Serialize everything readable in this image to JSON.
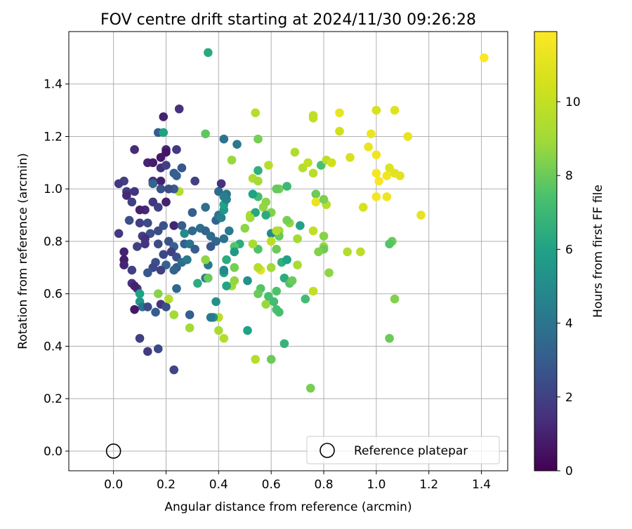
{
  "chart_data": {
    "type": "scatter",
    "title": "FOV centre drift starting at 2024/11/30 09:26:28",
    "xlabel": "Angular distance from reference (arcmin)",
    "ylabel": "Rotation from reference (arcmin)",
    "xlim": [
      -0.17,
      1.5
    ],
    "ylim": [
      -0.075,
      1.6
    ],
    "xticks": [
      0.0,
      0.2,
      0.4,
      0.6,
      0.8,
      1.0,
      1.2,
      1.4
    ],
    "xtick_labels": [
      "0.0",
      "0.2",
      "0.4",
      "0.6",
      "0.8",
      "1.0",
      "1.2",
      "1.4"
    ],
    "yticks": [
      0.0,
      0.2,
      0.4,
      0.6,
      0.8,
      1.0,
      1.2,
      1.4
    ],
    "ytick_labels": [
      "0.0",
      "0.2",
      "0.4",
      "0.6",
      "0.8",
      "1.0",
      "1.2",
      "1.4"
    ],
    "grid": true,
    "legend": {
      "placement": "lower-right",
      "entries": [
        "Reference platepar"
      ]
    },
    "colorbar": {
      "label": "Hours from first FF file",
      "colormap": "viridis",
      "range": [
        0,
        11.9
      ],
      "ticks": [
        0,
        2,
        4,
        6,
        8,
        10
      ],
      "tick_labels": [
        "0",
        "2",
        "4",
        "6",
        "8",
        "10"
      ]
    },
    "reference_point": {
      "x": 0.0,
      "y": 0.0,
      "name": "Reference platepar"
    },
    "points": [
      [
        0.25,
        1.305,
        1.5
      ],
      [
        0.19,
        1.275,
        1.0
      ],
      [
        0.17,
        1.215,
        3.0
      ],
      [
        0.19,
        1.215,
        6.0
      ],
      [
        0.2,
        1.15,
        1.2
      ],
      [
        0.2,
        1.14,
        0.6
      ],
      [
        0.24,
        1.15,
        1.8
      ],
      [
        0.08,
        1.15,
        1.3
      ],
      [
        0.13,
        1.1,
        1.1
      ],
      [
        0.15,
        1.1,
        0.8
      ],
      [
        0.18,
        1.12,
        0.7
      ],
      [
        0.18,
        1.08,
        1.4
      ],
      [
        0.2,
        1.09,
        2.0
      ],
      [
        0.26,
        1.08,
        2.8
      ],
      [
        0.23,
        1.06,
        3.0
      ],
      [
        0.24,
        1.05,
        3.2
      ],
      [
        0.04,
        1.03,
        2.0
      ],
      [
        0.15,
        1.03,
        1.5
      ],
      [
        0.18,
        1.03,
        1.0
      ],
      [
        0.02,
        1.02,
        1.7
      ],
      [
        0.05,
        0.99,
        1.8
      ],
      [
        0.05,
        0.975,
        1.2
      ],
      [
        0.08,
        0.99,
        1.6
      ],
      [
        0.15,
        1.02,
        3.4
      ],
      [
        0.18,
        1.0,
        2.6
      ],
      [
        0.2,
        0.95,
        3.0
      ],
      [
        0.2,
        0.95,
        1.0
      ],
      [
        0.15,
        0.95,
        1.6
      ],
      [
        0.17,
        0.93,
        2.0
      ],
      [
        0.12,
        0.92,
        1.2
      ],
      [
        0.1,
        0.92,
        1.0
      ],
      [
        0.07,
        0.95,
        2.0
      ],
      [
        0.06,
        0.88,
        2.5
      ],
      [
        0.02,
        0.83,
        1.7
      ],
      [
        0.1,
        0.87,
        2.0
      ],
      [
        0.13,
        0.87,
        2.4
      ],
      [
        0.19,
        0.86,
        2.6
      ],
      [
        0.23,
        0.86,
        1.1
      ],
      [
        0.26,
        0.86,
        3.0
      ],
      [
        0.17,
        0.84,
        2.4
      ],
      [
        0.14,
        0.83,
        2.5
      ],
      [
        0.11,
        0.82,
        1.9
      ],
      [
        0.12,
        0.81,
        1.4
      ],
      [
        0.12,
        0.79,
        1.6
      ],
      [
        0.09,
        0.78,
        2.0
      ],
      [
        0.04,
        0.76,
        1.0
      ],
      [
        0.17,
        0.79,
        2.4
      ],
      [
        0.19,
        0.75,
        2.3
      ],
      [
        0.21,
        0.8,
        2.6
      ],
      [
        0.23,
        0.78,
        3.2
      ],
      [
        0.22,
        0.76,
        2.0
      ],
      [
        0.24,
        0.74,
        2.6
      ],
      [
        0.2,
        0.71,
        3.3
      ],
      [
        0.16,
        0.72,
        2.5
      ],
      [
        0.15,
        0.7,
        2.3
      ],
      [
        0.13,
        0.68,
        2.8
      ],
      [
        0.18,
        0.69,
        2.0
      ],
      [
        0.04,
        0.73,
        0.8
      ],
      [
        0.04,
        0.71,
        1.1
      ],
      [
        0.07,
        0.69,
        2.0
      ],
      [
        0.07,
        0.64,
        1.5
      ],
      [
        0.09,
        0.62,
        1.6
      ],
      [
        0.08,
        0.63,
        1.0
      ],
      [
        0.1,
        0.57,
        5.5
      ],
      [
        0.1,
        0.6,
        6.0
      ],
      [
        0.11,
        0.55,
        4.0
      ],
      [
        0.13,
        0.55,
        2.4
      ],
      [
        0.16,
        0.53,
        3.0
      ],
      [
        0.18,
        0.56,
        1.5
      ],
      [
        0.2,
        0.55,
        2.5
      ],
      [
        0.21,
        0.58,
        9.5
      ],
      [
        0.23,
        0.52,
        9.0
      ],
      [
        0.17,
        0.6,
        8.5
      ],
      [
        0.1,
        0.43,
        2.0
      ],
      [
        0.13,
        0.38,
        1.8
      ],
      [
        0.17,
        0.39,
        2.3
      ],
      [
        0.23,
        0.31,
        2.2
      ],
      [
        0.08,
        0.54,
        0.7
      ],
      [
        0.24,
        0.62,
        3.4
      ],
      [
        0.24,
        0.7,
        3.0
      ],
      [
        0.23,
        0.69,
        3.3
      ],
      [
        0.26,
        0.72,
        3.8
      ],
      [
        0.28,
        0.73,
        4.2
      ],
      [
        0.27,
        0.79,
        3.2
      ],
      [
        0.29,
        0.79,
        4.0
      ],
      [
        0.31,
        0.77,
        3.0
      ],
      [
        0.27,
        0.83,
        5.0
      ],
      [
        0.3,
        0.84,
        3.5
      ],
      [
        0.33,
        0.85,
        3.8
      ],
      [
        0.35,
        0.84,
        3.4
      ],
      [
        0.37,
        0.82,
        3.6
      ],
      [
        0.3,
        0.91,
        3.0
      ],
      [
        0.35,
        0.93,
        3.8
      ],
      [
        0.39,
        0.88,
        3.3
      ],
      [
        0.4,
        0.9,
        4.0
      ],
      [
        0.41,
        0.89,
        4.6
      ],
      [
        0.42,
        0.92,
        5.5
      ],
      [
        0.42,
        0.94,
        6.0
      ],
      [
        0.43,
        0.96,
        4.6
      ],
      [
        0.4,
        0.99,
        3.6
      ],
      [
        0.41,
        1.02,
        1.5
      ],
      [
        0.43,
        0.98,
        3.9
      ],
      [
        0.42,
        0.97,
        4.5
      ],
      [
        0.31,
        1.03,
        2.0
      ],
      [
        0.42,
        1.19,
        4.0
      ],
      [
        0.47,
        1.17,
        4.2
      ],
      [
        0.36,
        1.52,
        6.3
      ],
      [
        0.35,
        1.21,
        7.8
      ],
      [
        0.45,
        1.11,
        8.8
      ],
      [
        0.53,
        1.04,
        9.4
      ],
      [
        0.55,
        1.07,
        6.6
      ],
      [
        0.55,
        1.03,
        9.1
      ],
      [
        0.59,
        1.09,
        9.6
      ],
      [
        0.63,
        1.0,
        8.2
      ],
      [
        0.62,
        1.0,
        7.9
      ],
      [
        0.66,
        1.01,
        7.0
      ],
      [
        0.55,
        1.19,
        8.2
      ],
      [
        0.54,
        1.29,
        9.6
      ],
      [
        0.69,
        1.14,
        9.4
      ],
      [
        0.72,
        1.08,
        9.6
      ],
      [
        0.74,
        1.1,
        9.9
      ],
      [
        0.76,
        1.06,
        9.7
      ],
      [
        0.76,
        1.28,
        10.0
      ],
      [
        0.76,
        1.27,
        9.9
      ],
      [
        0.77,
        0.98,
        8.0
      ],
      [
        0.79,
        1.09,
        7.4
      ],
      [
        0.81,
        1.11,
        9.8
      ],
      [
        0.83,
        1.1,
        10.4
      ],
      [
        0.86,
        1.22,
        10.4
      ],
      [
        0.86,
        1.29,
        11.2
      ],
      [
        0.9,
        1.12,
        10.6
      ],
      [
        0.97,
        1.16,
        11.3
      ],
      [
        0.98,
        1.21,
        11.3
      ],
      [
        1.0,
        1.3,
        10.6
      ],
      [
        1.0,
        1.13,
        11.5
      ],
      [
        1.0,
        1.06,
        11.6
      ],
      [
        1.01,
        1.03,
        11.7
      ],
      [
        1.04,
        1.05,
        11.5
      ],
      [
        1.05,
        1.08,
        10.8
      ],
      [
        1.07,
        1.06,
        11.0
      ],
      [
        1.09,
        1.05,
        11.0
      ],
      [
        1.12,
        1.2,
        11.2
      ],
      [
        1.07,
        1.3,
        10.9
      ],
      [
        1.04,
        0.97,
        11.4
      ],
      [
        1.0,
        0.97,
        11.6
      ],
      [
        0.95,
        0.93,
        10.6
      ],
      [
        1.17,
        0.9,
        11.1
      ],
      [
        1.41,
        1.5,
        11.9
      ],
      [
        0.77,
        0.95,
        11.2
      ],
      [
        0.81,
        0.94,
        9.6
      ],
      [
        0.8,
        0.96,
        8.3
      ],
      [
        0.8,
        0.82,
        8.5
      ],
      [
        0.8,
        0.78,
        8.8
      ],
      [
        0.8,
        0.77,
        8.0
      ],
      [
        0.78,
        0.76,
        8.4
      ],
      [
        0.82,
        0.68,
        8.6
      ],
      [
        0.89,
        0.76,
        9.5
      ],
      [
        0.94,
        0.76,
        9.8
      ],
      [
        0.76,
        0.84,
        9.9
      ],
      [
        0.7,
        0.81,
        9.0
      ],
      [
        0.71,
        0.86,
        6.0
      ],
      [
        0.67,
        0.87,
        8.7
      ],
      [
        0.66,
        0.88,
        8.2
      ],
      [
        0.63,
        0.84,
        8.9
      ],
      [
        0.63,
        0.82,
        7.9
      ],
      [
        0.6,
        0.91,
        8.4
      ],
      [
        0.58,
        0.95,
        8.6
      ],
      [
        0.57,
        0.93,
        8.7
      ],
      [
        0.55,
        0.97,
        7.2
      ],
      [
        0.53,
        0.98,
        6.0
      ],
      [
        0.52,
        0.9,
        9.5
      ],
      [
        0.54,
        0.91,
        6.2
      ],
      [
        0.52,
        0.89,
        9.0
      ],
      [
        0.58,
        0.9,
        6.4
      ],
      [
        0.6,
        0.83,
        5.0
      ],
      [
        0.62,
        0.84,
        9.5
      ],
      [
        0.6,
        0.8,
        9.8
      ],
      [
        0.55,
        0.77,
        7.5
      ],
      [
        0.53,
        0.79,
        9.2
      ],
      [
        0.5,
        0.85,
        8.6
      ],
      [
        0.48,
        0.79,
        6.4
      ],
      [
        0.46,
        0.78,
        7.6
      ],
      [
        0.42,
        0.81,
        3.8
      ],
      [
        0.44,
        0.84,
        4.2
      ],
      [
        0.46,
        0.76,
        5.6
      ],
      [
        0.43,
        0.73,
        6.4
      ],
      [
        0.39,
        0.8,
        3.4
      ],
      [
        0.37,
        0.78,
        2.8
      ],
      [
        0.36,
        0.71,
        4.2
      ],
      [
        0.35,
        0.73,
        8.6
      ],
      [
        0.32,
        0.64,
        6.4
      ],
      [
        0.35,
        0.66,
        4.2
      ],
      [
        0.36,
        0.66,
        8.0
      ],
      [
        0.42,
        0.68,
        6.0
      ],
      [
        0.42,
        0.69,
        4.8
      ],
      [
        0.45,
        0.63,
        9.0
      ],
      [
        0.46,
        0.65,
        8.7
      ],
      [
        0.43,
        0.63,
        6.1
      ],
      [
        0.46,
        0.7,
        8.2
      ],
      [
        0.51,
        0.65,
        5.2
      ],
      [
        0.56,
        0.69,
        11.0
      ],
      [
        0.55,
        0.7,
        9.6
      ],
      [
        0.56,
        0.62,
        7.6
      ],
      [
        0.55,
        0.6,
        8.0
      ],
      [
        0.58,
        0.56,
        8.8
      ],
      [
        0.59,
        0.59,
        7.3
      ],
      [
        0.61,
        0.57,
        7.2
      ],
      [
        0.62,
        0.54,
        7.3
      ],
      [
        0.63,
        0.53,
        7.3
      ],
      [
        0.62,
        0.61,
        7.5
      ],
      [
        0.65,
        0.66,
        6.4
      ],
      [
        0.67,
        0.64,
        7.6
      ],
      [
        0.68,
        0.65,
        8.0
      ],
      [
        0.7,
        0.71,
        9.2
      ],
      [
        0.64,
        0.72,
        6.6
      ],
      [
        0.6,
        0.7,
        9.0
      ],
      [
        0.62,
        0.77,
        8.0
      ],
      [
        0.66,
        0.73,
        6.0
      ],
      [
        0.73,
        0.58,
        7.2
      ],
      [
        0.76,
        0.61,
        10.0
      ],
      [
        0.65,
        0.41,
        6.8
      ],
      [
        0.6,
        0.35,
        8.0
      ],
      [
        0.54,
        0.35,
        9.6
      ],
      [
        0.51,
        0.46,
        6.0
      ],
      [
        0.4,
        0.46,
        9.2
      ],
      [
        0.42,
        0.43,
        9.5
      ],
      [
        0.4,
        0.51,
        9.8
      ],
      [
        0.38,
        0.51,
        5.3
      ],
      [
        0.37,
        0.51,
        4.2
      ],
      [
        0.39,
        0.57,
        5.2
      ],
      [
        0.29,
        0.52,
        3.1
      ],
      [
        0.29,
        0.47,
        9.0
      ],
      [
        0.75,
        0.24,
        8.2
      ],
      [
        1.05,
        0.43,
        8.0
      ],
      [
        1.07,
        0.58,
        8.4
      ],
      [
        1.06,
        0.8,
        8.0
      ],
      [
        1.05,
        0.79,
        7.6
      ],
      [
        0.25,
        0.99,
        9.6
      ],
      [
        0.23,
        1.0,
        3.0
      ],
      [
        0.21,
        1.0,
        2.4
      ]
    ]
  }
}
